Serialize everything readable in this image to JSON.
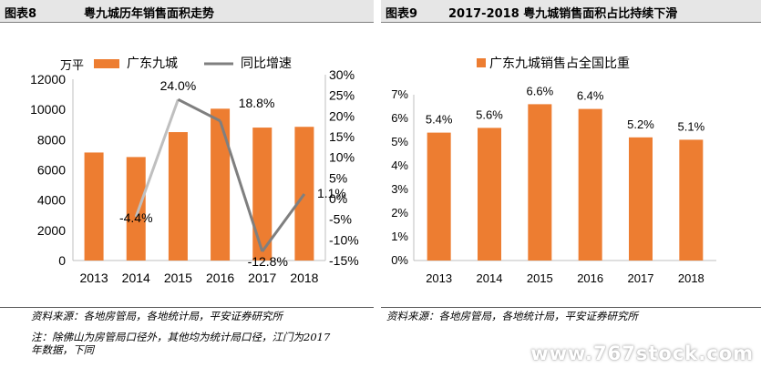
{
  "left_panel": {
    "figure_no": "图表8",
    "figure_title": "粤九城历年销售面积走势",
    "source_note": "资料来源：各地房管局，各地统计局，平安证券研究所",
    "note_line1": "注：除佛山为房管局口径外，其他均为统计局口径，江门为2017",
    "note_line2": "年数据，下同"
  },
  "right_panel": {
    "figure_no": "图表9",
    "figure_title": "2017-2018 粤九城销售面积占比持续下滑",
    "source_note": "资料来源：各地房管局，各地统计局，平安证券研究所"
  },
  "watermark": "www.767stock.com",
  "colors": {
    "bar": "#ed7d31",
    "line": "#7f7f7f",
    "line_light": "#bfbfbf"
  },
  "chart_data": [
    {
      "type": "bar+line",
      "categories": [
        "2013",
        "2014",
        "2015",
        "2016",
        "2017",
        "2018"
      ],
      "y_left_unit": "万平",
      "y_left_ticks": [
        "0",
        "2000",
        "4000",
        "6000",
        "8000",
        "10000",
        "12000"
      ],
      "y_left_lim": [
        0,
        12000
      ],
      "y_right_ticks": [
        "-15%",
        "-10%",
        "-5%",
        "0%",
        "5%",
        "10%",
        "15%",
        "20%",
        "25%",
        "30%"
      ],
      "y_right_lim": [
        -15,
        30
      ],
      "legend": [
        "广东九城",
        "同比增速"
      ],
      "legend_position": "top",
      "bars": {
        "name": "广东九城",
        "values": [
          7150,
          6850,
          8500,
          10050,
          8800,
          8850
        ]
      },
      "line": {
        "name": "同比增速",
        "values": [
          null,
          -4.4,
          24.0,
          18.8,
          -12.8,
          1.1
        ],
        "labels": [
          "",
          "-4.4%",
          "24.0%",
          "18.8%",
          "-12.8%",
          "1.1%"
        ]
      },
      "grid": false
    },
    {
      "type": "bar",
      "categories": [
        "2013",
        "2014",
        "2015",
        "2016",
        "2017",
        "2018"
      ],
      "y_ticks": [
        "0%",
        "1%",
        "2%",
        "3%",
        "4%",
        "5%",
        "6%",
        "7%"
      ],
      "ylim": [
        0,
        7
      ],
      "legend": [
        "广东九城销售占全国比重"
      ],
      "legend_position": "top",
      "series": [
        {
          "name": "广东九城销售占全国比重",
          "values": [
            5.4,
            5.6,
            6.6,
            6.4,
            5.2,
            5.1
          ],
          "labels": [
            "5.4%",
            "5.6%",
            "6.6%",
            "6.4%",
            "5.2%",
            "5.1%"
          ]
        }
      ],
      "grid": false
    }
  ]
}
